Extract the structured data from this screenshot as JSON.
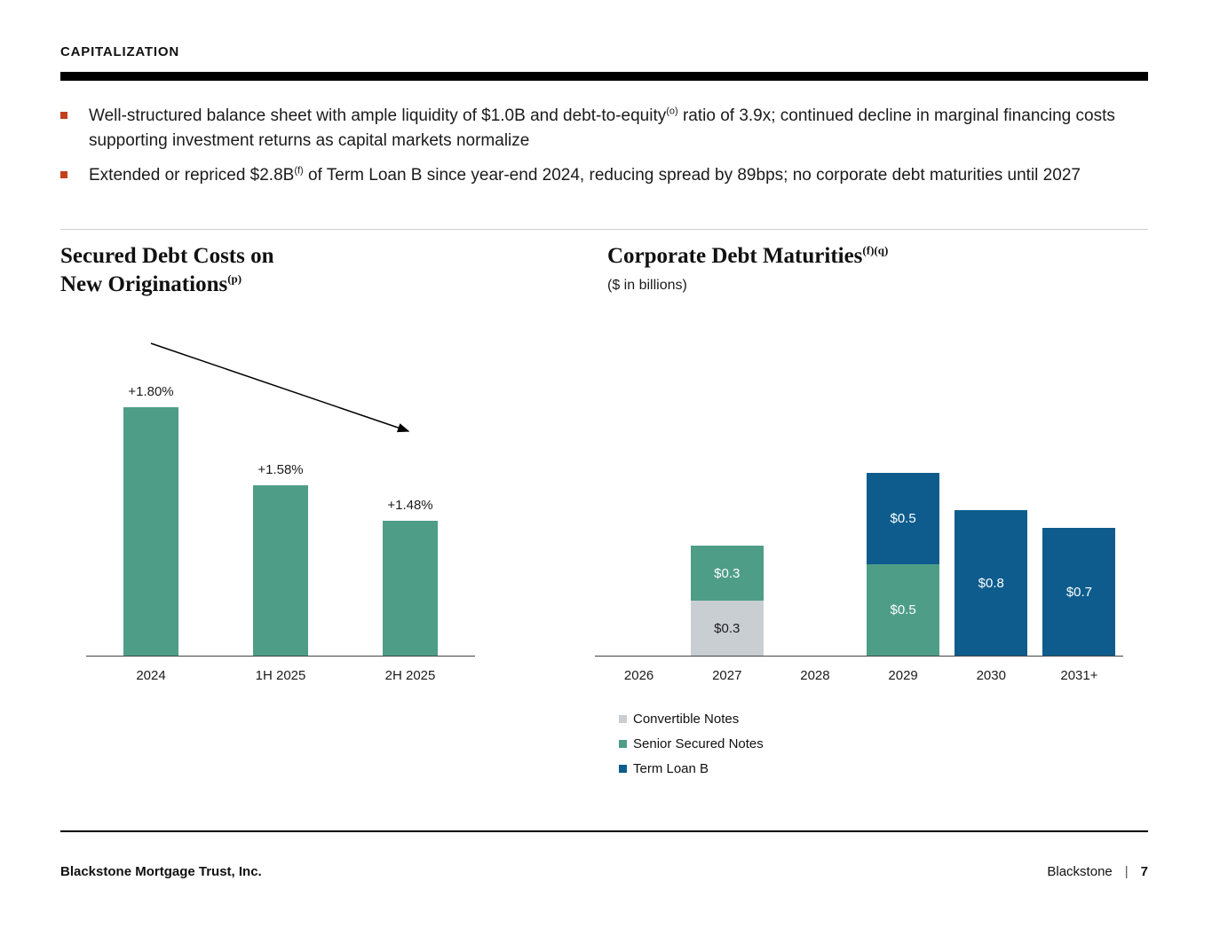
{
  "header": {
    "title": "CAPITALIZATION"
  },
  "bullets": [
    {
      "before": "Well-structured balance sheet with ample liquidity of $1.0B and debt-to-equity",
      "sup": "(o)",
      "after": " ratio of 3.9x; continued decline in marginal financing costs supporting investment returns as capital markets normalize"
    },
    {
      "before": "Extended or repriced $2.8B",
      "sup": "(f)",
      "after": " of Term Loan B since year-end 2024, reducing spread by 89bps; no corporate debt maturities until 2027"
    }
  ],
  "charts": {
    "left": {
      "title_line1": "Secured Debt Costs on",
      "title_line2": "New Originations",
      "title_sup": "(p)"
    },
    "right": {
      "title": "Corporate Debt Maturities",
      "title_sup": "(f)(q)",
      "subtitle": "($ in billions)"
    }
  },
  "chart_data": [
    {
      "id": "secured_debt_costs_on_new_originations",
      "type": "bar",
      "title": "Secured Debt Costs on New Originations",
      "categories": [
        "2024",
        "1H 2025",
        "2H 2025"
      ],
      "values": [
        1.8,
        1.58,
        1.48
      ],
      "labels": [
        "+1.80%",
        "+1.58%",
        "+1.48%"
      ],
      "bar_color": "#4e9d87",
      "ylim": [
        1.1,
        1.9
      ],
      "annotation": "downward trend arrow",
      "unit": "%"
    },
    {
      "id": "corporate_debt_maturities",
      "type": "stacked-bar",
      "title": "Corporate Debt Maturities",
      "subtitle": "($ in billions)",
      "categories": [
        "2026",
        "2027",
        "2028",
        "2029",
        "2030",
        "2031+"
      ],
      "series": [
        {
          "name": "Convertible Notes",
          "color": "#c9ced3",
          "label_color": "#1b1b1b",
          "values": [
            0,
            0.3,
            0,
            0,
            0,
            0
          ]
        },
        {
          "name": "Senior Secured Notes",
          "color": "#4e9d87",
          "label_color": "#ffffff",
          "values": [
            0,
            0.3,
            0,
            0.5,
            0,
            0
          ]
        },
        {
          "name": "Term Loan B",
          "color": "#0d5c8d",
          "label_color": "#ffffff",
          "values": [
            0,
            0,
            0,
            0.5,
            0.8,
            0.7
          ]
        }
      ],
      "value_prefix": "$",
      "legend_position": "bottom-left",
      "ylim": [
        0,
        1.0
      ]
    }
  ],
  "footer": {
    "company": "Blackstone Mortgage Trust, Inc.",
    "brand": "Blackstone",
    "separator": "|",
    "page_number": "7"
  },
  "colors": {
    "accent_bullet": "#c2411c",
    "bar_green": "#4e9d87",
    "bar_blue": "#0d5c8d",
    "bar_gray": "#c9ced3",
    "title_bar": "#000000"
  }
}
